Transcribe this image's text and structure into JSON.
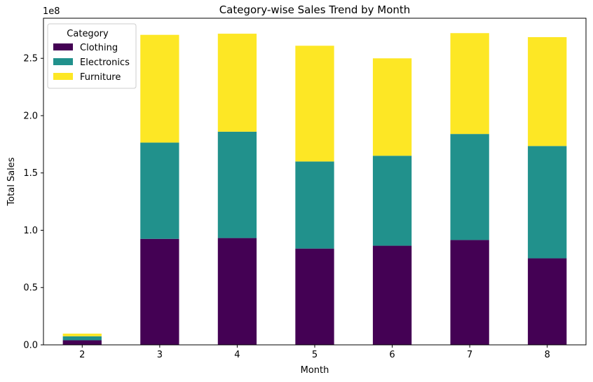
{
  "chart_data": {
    "type": "bar",
    "stacked": true,
    "title": "Category-wise Sales Trend by Month",
    "xlabel": "Month",
    "ylabel": "Total Sales",
    "y_scale_label": "1e8",
    "categories": [
      "2",
      "3",
      "4",
      "5",
      "6",
      "7",
      "8"
    ],
    "ylim": [
      0,
      285000000
    ],
    "yticks": [
      0,
      50000000,
      100000000,
      150000000,
      200000000,
      250000000
    ],
    "ytick_labels": [
      "0.0",
      "0.5",
      "1.0",
      "1.5",
      "2.0",
      "2.5"
    ],
    "legend": {
      "title": "Category",
      "placement": "upper-left"
    },
    "series": [
      {
        "name": "Clothing",
        "color": "#440154",
        "values": [
          4000000,
          92500000,
          93200000,
          84000000,
          86500000,
          91500000,
          75500000
        ]
      },
      {
        "name": "Electronics",
        "color": "#21918c",
        "values": [
          3500000,
          84000000,
          92800000,
          76000000,
          78500000,
          92500000,
          98000000
        ]
      },
      {
        "name": "Furniture",
        "color": "#fde725",
        "values": [
          2300000,
          94000000,
          85500000,
          101000000,
          85000000,
          88000000,
          95000000
        ]
      }
    ]
  }
}
